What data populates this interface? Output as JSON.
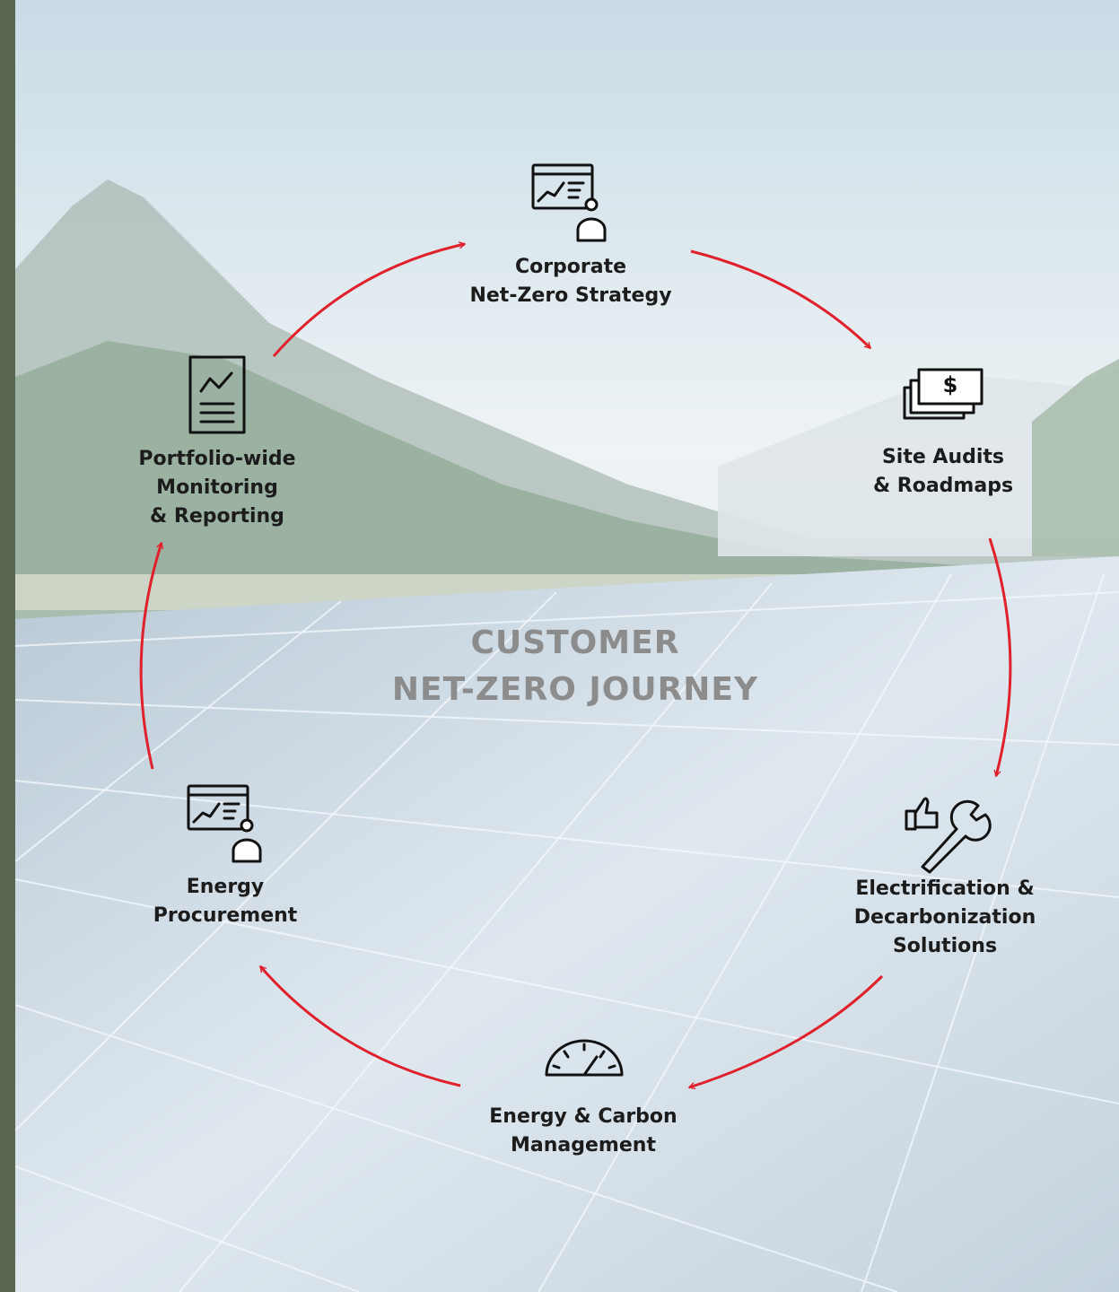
{
  "center": {
    "lines": [
      "CUSTOMER",
      "NET-ZERO JOURNEY"
    ]
  },
  "nodes": [
    {
      "lines": [
        "Corporate",
        "Net-Zero Strategy"
      ]
    },
    {
      "lines": [
        "Site Audits",
        "& Roadmaps"
      ]
    },
    {
      "lines": [
        "Electrification &",
        "Decarbonization",
        "Solutions"
      ]
    },
    {
      "lines": [
        "Energy & Carbon",
        "Management"
      ]
    },
    {
      "lines": [
        "Energy",
        "Procurement"
      ]
    },
    {
      "lines": [
        "Portfolio-wide",
        "Monitoring",
        "& Reporting"
      ]
    }
  ]
}
